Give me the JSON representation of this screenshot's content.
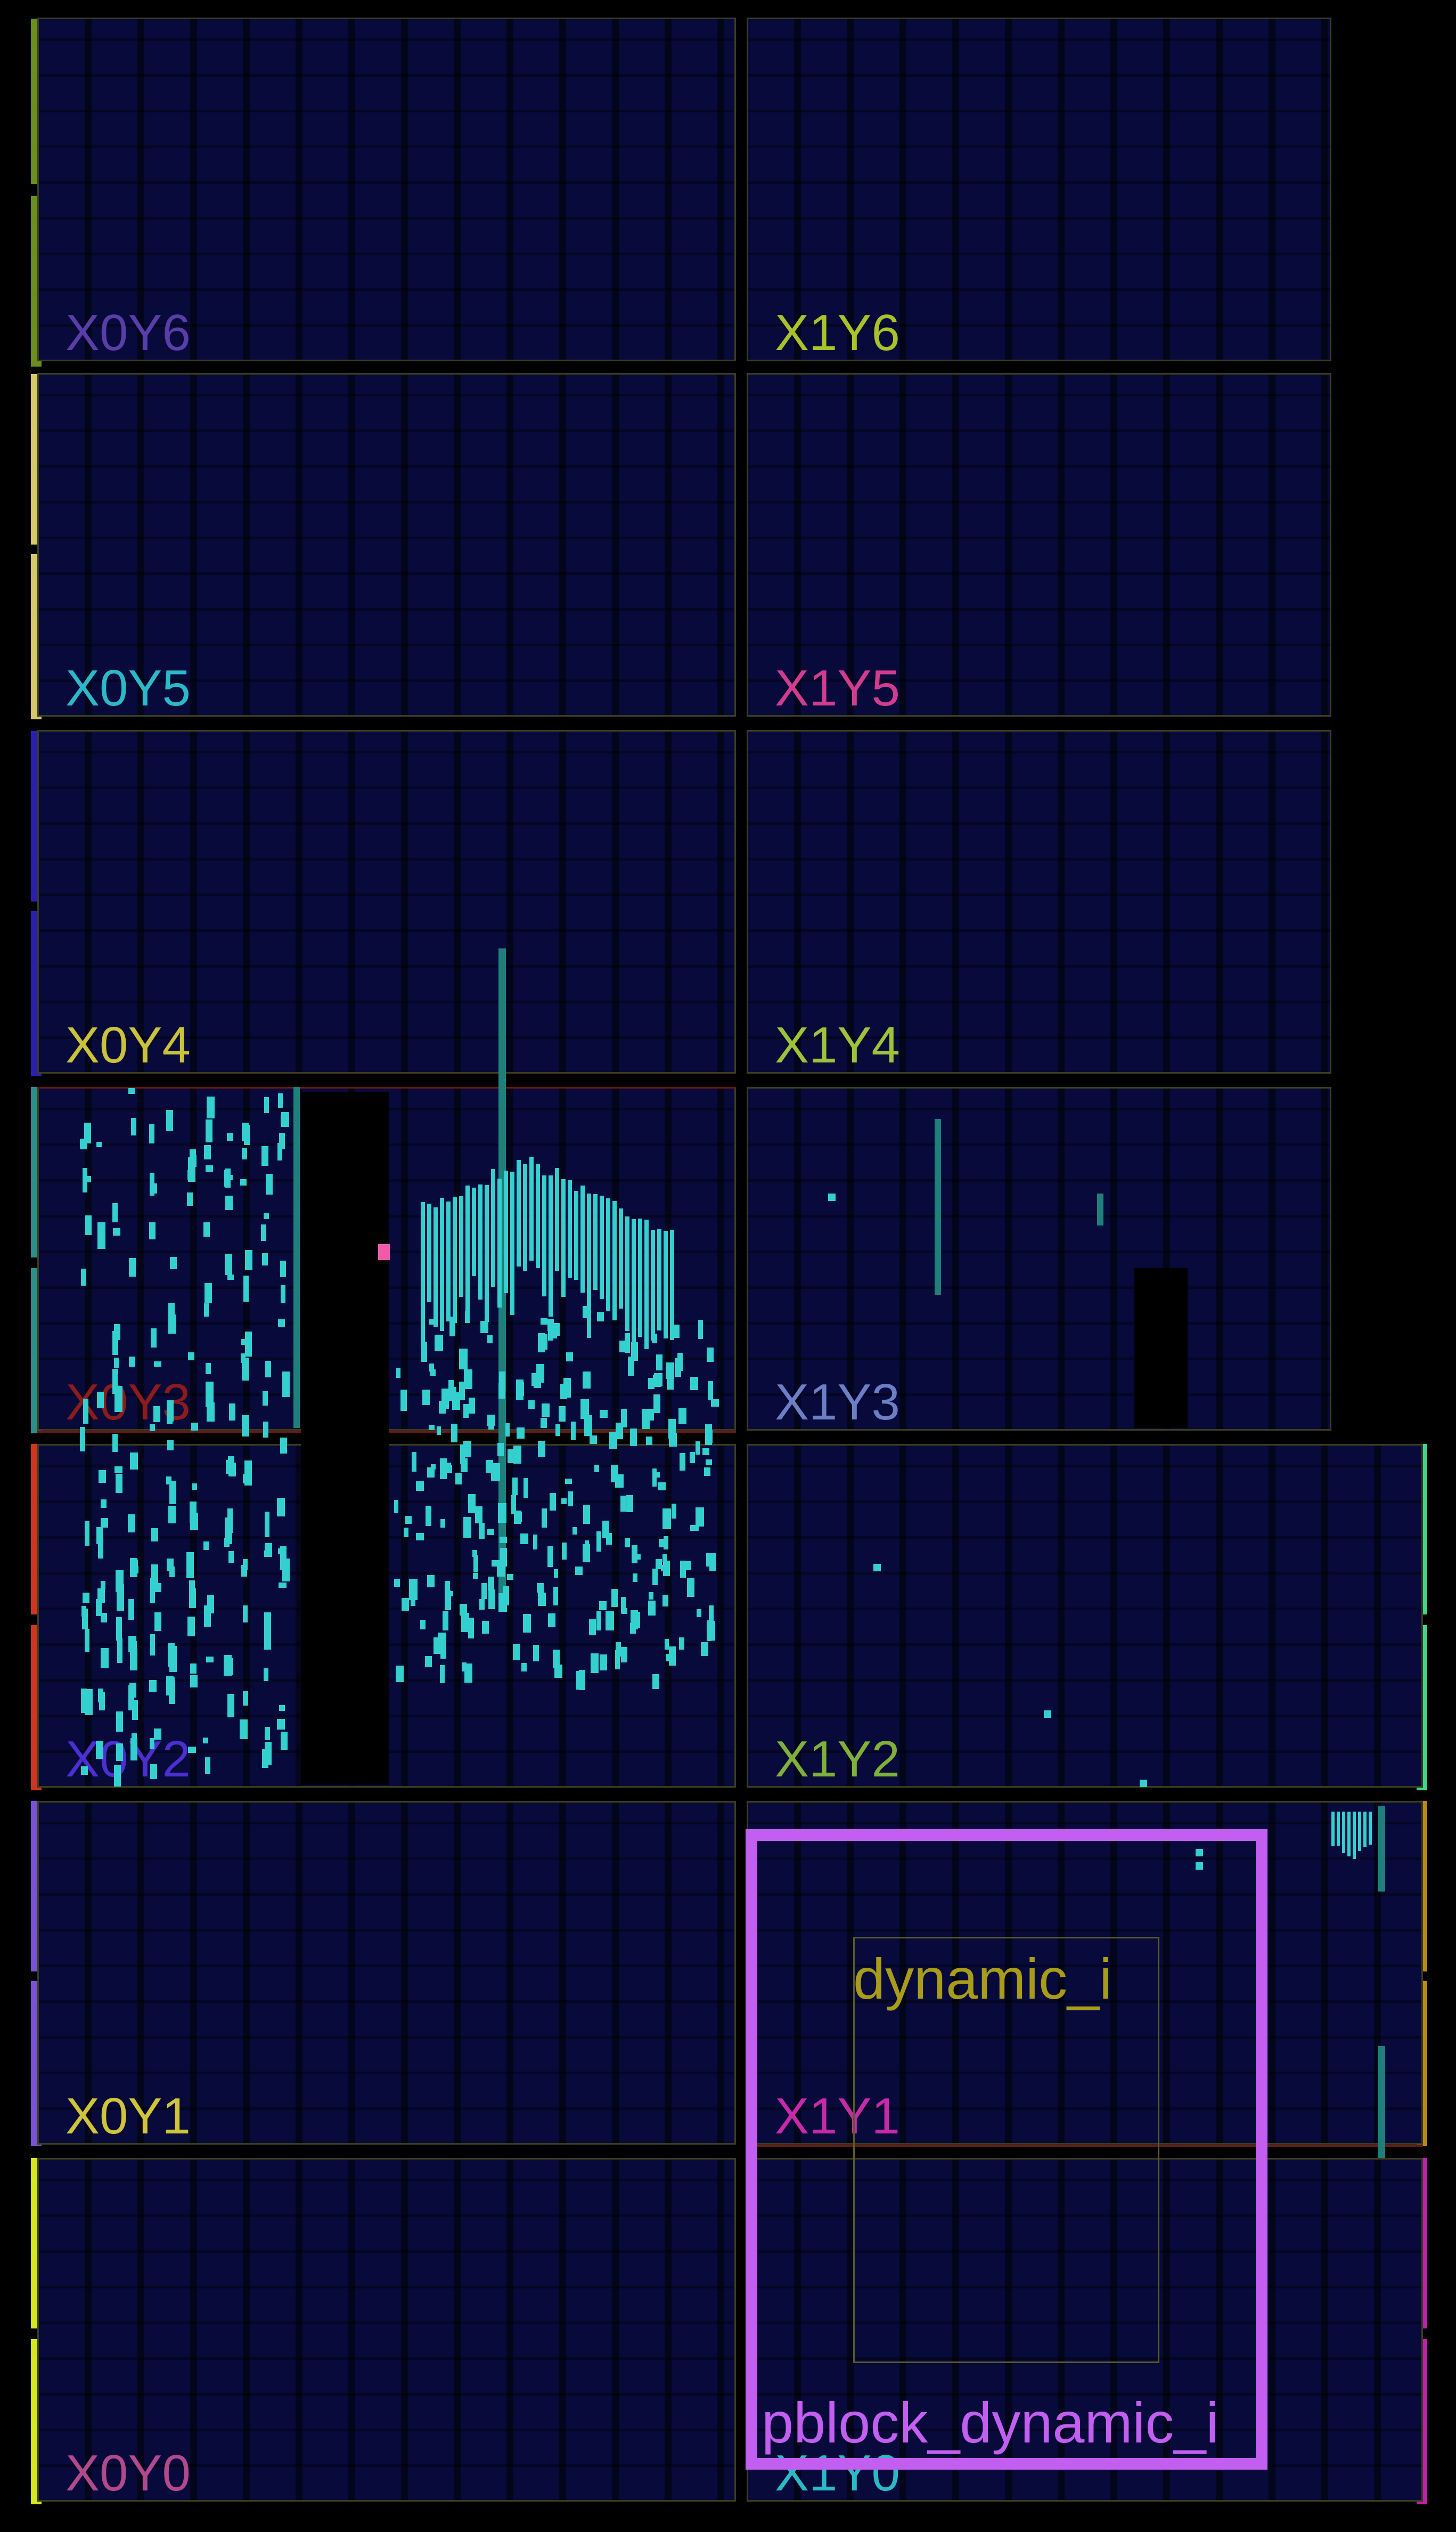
{
  "view": "device",
  "clock_regions": [
    {
      "id": "X0Y6",
      "label": "X0Y6",
      "color": "#5a3ea8"
    },
    {
      "id": "X1Y6",
      "label": "X1Y6",
      "color": "#a9c22a"
    },
    {
      "id": "X0Y5",
      "label": "X0Y5",
      "color": "#2bb9c7"
    },
    {
      "id": "X1Y5",
      "label": "X1Y5",
      "color": "#d03d8e"
    },
    {
      "id": "X0Y4",
      "label": "X0Y4",
      "color": "#c9c23a"
    },
    {
      "id": "X1Y4",
      "label": "X1Y4",
      "color": "#9ec23a"
    },
    {
      "id": "X0Y3",
      "label": "X0Y3",
      "color": "#8c1b1b"
    },
    {
      "id": "X1Y3",
      "label": "X1Y3",
      "color": "#6d7fc4"
    },
    {
      "id": "X0Y2",
      "label": "X0Y2",
      "color": "#4b2fd0"
    },
    {
      "id": "X1Y2",
      "label": "X1Y2",
      "color": "#7fb03a"
    },
    {
      "id": "X0Y1",
      "label": "X0Y1",
      "color": "#d0c43a"
    },
    {
      "id": "X1Y1",
      "label": "X1Y1",
      "color": "#c62aa8"
    },
    {
      "id": "X0Y0",
      "label": "X0Y0",
      "color": "#b04a8a"
    },
    {
      "id": "X1Y0",
      "label": "X1Y0",
      "color": "#2bb9c7"
    }
  ],
  "pblock": {
    "label": "pblock_dynamic_i",
    "color": "#c25ef0"
  },
  "cell_group": {
    "label": "dynamic_i",
    "color": "#a89c1a"
  },
  "placed_cell_color": "#34d0d0"
}
